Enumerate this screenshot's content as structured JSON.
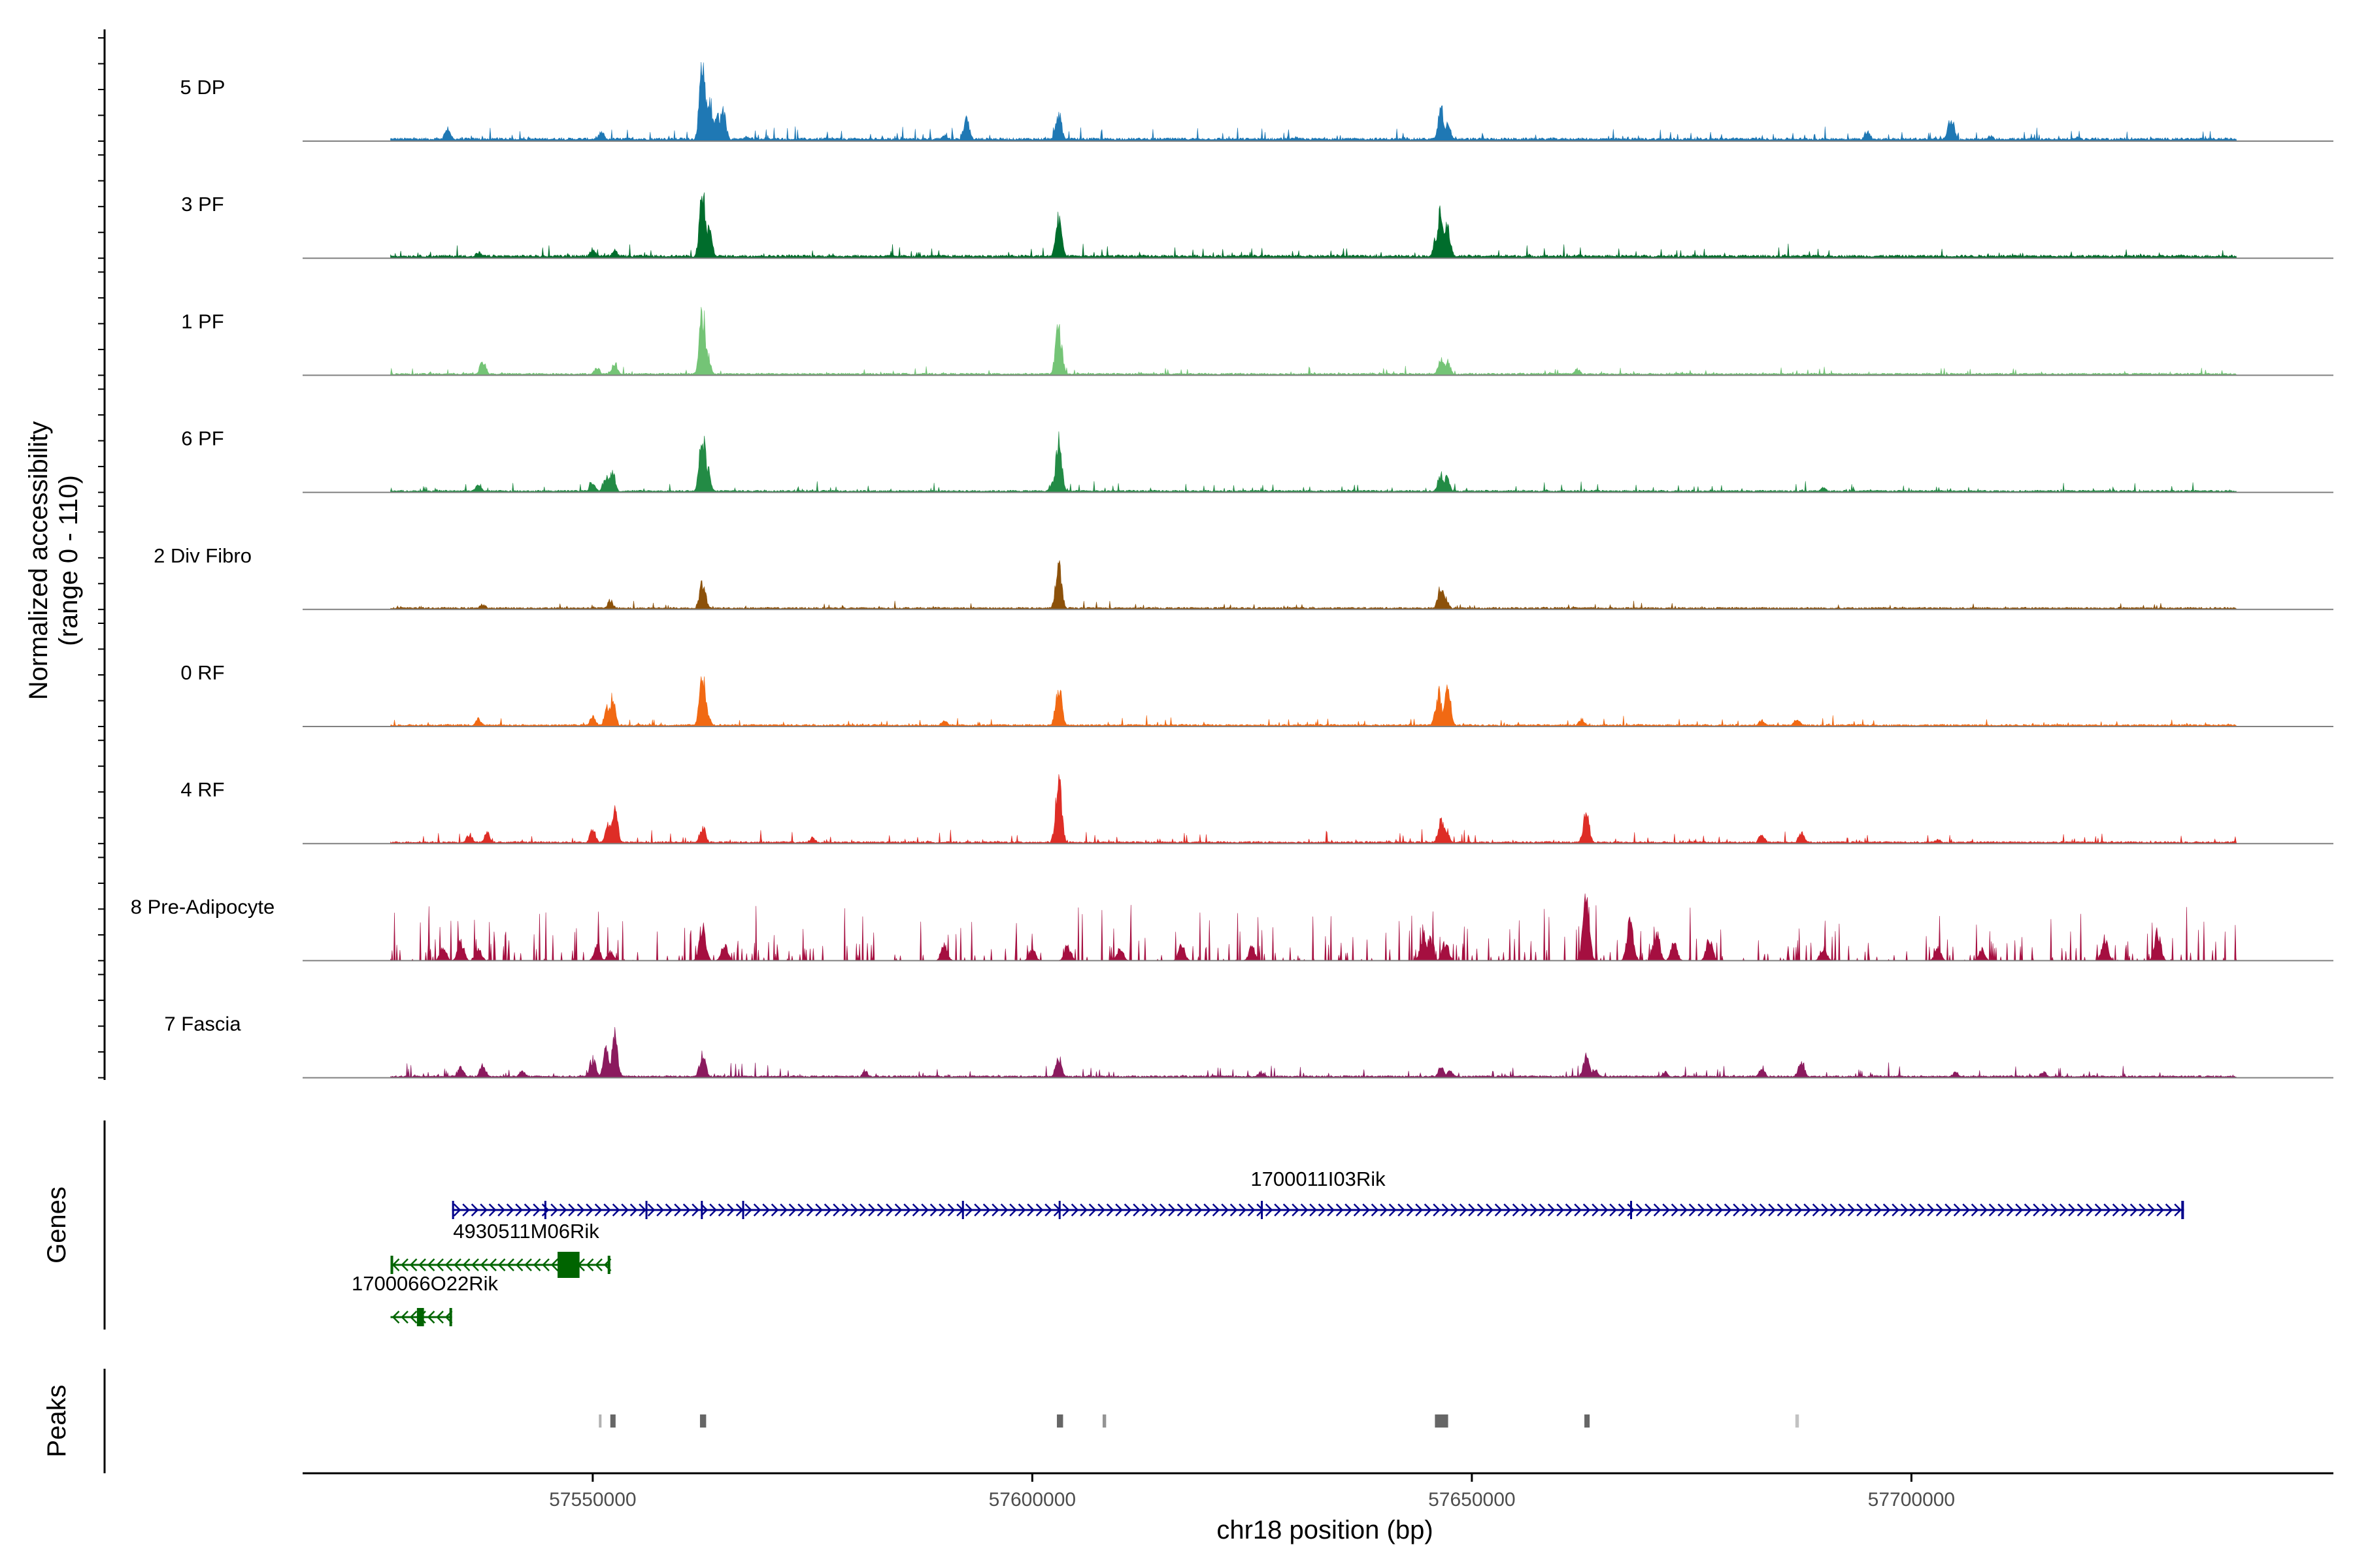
{
  "chart_data": {
    "type": "area",
    "title": "",
    "xlabel": "chr18 position (bp)",
    "ylabel_line1": "Normalized accessibility",
    "ylabel_line2": "(range 0 - 110)",
    "ylim": [
      0,
      110
    ],
    "xlim": [
      57517000,
      57748000
    ],
    "x_ticks": [
      57550000,
      57600000,
      57650000,
      57700000
    ],
    "x_tick_labels": [
      "57550000",
      "57600000",
      "57650000",
      "57700000"
    ],
    "signal_range": [
      57527000,
      57737000
    ],
    "tracks": [
      {
        "name": "5 DP",
        "color": "#1f78b4",
        "baseline": 3,
        "noise": 5,
        "density": 0.07,
        "peaks": [
          [
            57533500,
            18
          ],
          [
            57551000,
            12
          ],
          [
            57562500,
            105
          ],
          [
            57563300,
            55
          ],
          [
            57564200,
            38
          ],
          [
            57564800,
            40
          ],
          [
            57567500,
            6
          ],
          [
            57590000,
            9
          ],
          [
            57592500,
            28
          ],
          [
            57603000,
            35
          ],
          [
            57630000,
            6
          ],
          [
            57646500,
            42
          ],
          [
            57647200,
            25
          ],
          [
            57695000,
            14
          ],
          [
            57704500,
            32
          ],
          [
            57709000,
            7
          ],
          [
            57719000,
            5
          ]
        ]
      },
      {
        "name": "3 PF",
        "color": "#006d2c",
        "baseline": 3,
        "noise": 5,
        "density": 0.06,
        "peaks": [
          [
            57537000,
            8
          ],
          [
            57550000,
            12
          ],
          [
            57552500,
            10
          ],
          [
            57562500,
            85
          ],
          [
            57563200,
            40
          ],
          [
            57603000,
            55
          ],
          [
            57646500,
            70
          ],
          [
            57647200,
            45
          ],
          [
            57646000,
            30
          ]
        ]
      },
      {
        "name": "1 PF",
        "color": "#74c476",
        "baseline": 2,
        "noise": 3,
        "density": 0.05,
        "peaks": [
          [
            57537500,
            18
          ],
          [
            57550500,
            10
          ],
          [
            57552500,
            16
          ],
          [
            57562500,
            82
          ],
          [
            57563000,
            30
          ],
          [
            57603000,
            65
          ],
          [
            57646500,
            22
          ],
          [
            57647200,
            18
          ],
          [
            57662000,
            8
          ]
        ]
      },
      {
        "name": "6 PF",
        "color": "#238b45",
        "baseline": 2,
        "noise": 4,
        "density": 0.06,
        "peaks": [
          [
            57537000,
            12
          ],
          [
            57550000,
            14
          ],
          [
            57552200,
            28
          ],
          [
            57551500,
            20
          ],
          [
            57562500,
            78
          ],
          [
            57563000,
            35
          ],
          [
            57603000,
            68
          ],
          [
            57602300,
            12
          ],
          [
            57646500,
            25
          ],
          [
            57647100,
            20
          ],
          [
            57690000,
            6
          ]
        ]
      },
      {
        "name": "2 Div Fibro",
        "color": "#8c510a",
        "baseline": 2,
        "noise": 3,
        "density": 0.04,
        "peaks": [
          [
            57537500,
            7
          ],
          [
            57552000,
            12
          ],
          [
            57562500,
            35
          ],
          [
            57603000,
            55
          ],
          [
            57646500,
            30
          ],
          [
            57647000,
            15
          ]
        ]
      },
      {
        "name": "0 RF",
        "color": "#f16913",
        "baseline": 2,
        "noise": 4,
        "density": 0.05,
        "peaks": [
          [
            57537000,
            10
          ],
          [
            57550000,
            14
          ],
          [
            57552200,
            38
          ],
          [
            57551700,
            25
          ],
          [
            57562500,
            62
          ],
          [
            57563000,
            20
          ],
          [
            57590000,
            8
          ],
          [
            57603000,
            55
          ],
          [
            57646200,
            45
          ],
          [
            57647200,
            58
          ],
          [
            57662500,
            10
          ],
          [
            57683000,
            8
          ],
          [
            57687000,
            10
          ]
        ]
      },
      {
        "name": "4 RF",
        "color": "#de2d26",
        "baseline": 2,
        "noise": 5,
        "density": 0.06,
        "peaks": [
          [
            57536000,
            12
          ],
          [
            57538000,
            14
          ],
          [
            57550000,
            18
          ],
          [
            57552500,
            45
          ],
          [
            57551800,
            28
          ],
          [
            57562500,
            22
          ],
          [
            57575000,
            8
          ],
          [
            57603000,
            80
          ],
          [
            57646500,
            30
          ],
          [
            57647000,
            22
          ],
          [
            57663000,
            40
          ],
          [
            57683000,
            12
          ],
          [
            57687500,
            15
          ],
          [
            57703000,
            6
          ]
        ]
      },
      {
        "name": "8 Pre-Adipocyte",
        "color": "#a50f40",
        "baseline": 0,
        "noise": 22,
        "density": 0.16,
        "peaks": [
          [
            57533000,
            18
          ],
          [
            57535000,
            25
          ],
          [
            57537000,
            16
          ],
          [
            57550500,
            18
          ],
          [
            57552000,
            12
          ],
          [
            57562500,
            48
          ],
          [
            57565000,
            22
          ],
          [
            57590000,
            20
          ],
          [
            57600000,
            15
          ],
          [
            57604000,
            20
          ],
          [
            57610000,
            18
          ],
          [
            57617000,
            20
          ],
          [
            57625000,
            18
          ],
          [
            57644500,
            35
          ],
          [
            57645200,
            28
          ],
          [
            57647000,
            25
          ],
          [
            57663000,
            95
          ],
          [
            57668000,
            50
          ],
          [
            57671000,
            40
          ],
          [
            57673000,
            25
          ],
          [
            57677000,
            28
          ],
          [
            57690000,
            18
          ],
          [
            57703000,
            16
          ],
          [
            57708000,
            15
          ],
          [
            57722000,
            30
          ],
          [
            57728000,
            40
          ]
        ]
      },
      {
        "name": "7 Fascia",
        "color": "#8b1a5e",
        "baseline": 2,
        "noise": 6,
        "density": 0.07,
        "peaks": [
          [
            57535000,
            14
          ],
          [
            57537500,
            16
          ],
          [
            57542000,
            10
          ],
          [
            57550000,
            25
          ],
          [
            57551500,
            35
          ],
          [
            57552500,
            55
          ],
          [
            57562500,
            30
          ],
          [
            57581000,
            8
          ],
          [
            57603000,
            28
          ],
          [
            57626000,
            8
          ],
          [
            57646500,
            14
          ],
          [
            57647500,
            10
          ],
          [
            57663000,
            30
          ],
          [
            57664000,
            12
          ],
          [
            57672000,
            8
          ],
          [
            57683000,
            14
          ],
          [
            57687500,
            22
          ],
          [
            57705000,
            8
          ],
          [
            57715000,
            8
          ]
        ]
      }
    ],
    "genes": [
      {
        "name": "1700011I03Rik",
        "color": "#00008b",
        "strand": "+",
        "start": 57534000,
        "end": 57731000,
        "exons": [
          [
            57534000,
            57534200
          ],
          [
            57544500,
            57544700
          ],
          [
            57556000,
            57556200
          ],
          [
            57562300,
            57562500
          ],
          [
            57567000,
            57567200
          ],
          [
            57592000,
            57592200
          ],
          [
            57603000,
            57603200
          ],
          [
            57626000,
            57626200
          ],
          [
            57668000,
            57668200
          ],
          [
            57730700,
            57731000
          ]
        ]
      },
      {
        "name": "4930511M06Rik",
        "color": "#006400",
        "strand": "-",
        "start": 57527000,
        "end": 57552000,
        "exons": [
          [
            57546000,
            57548500
          ],
          [
            57527000,
            57527300
          ],
          [
            57551700,
            57552000
          ]
        ]
      },
      {
        "name": "1700066O22Rik",
        "color": "#006400",
        "strand": "-",
        "start": 57527000,
        "end": 57534000,
        "exons": [
          [
            57530000,
            57530800
          ],
          [
            57533700,
            57534000
          ]
        ]
      }
    ],
    "peaks": [
      {
        "start": 57550700,
        "end": 57551000,
        "alpha": 0.5
      },
      {
        "start": 57552000,
        "end": 57552600,
        "alpha": 1.0
      },
      {
        "start": 57562200,
        "end": 57562900,
        "alpha": 1.0
      },
      {
        "start": 57602800,
        "end": 57603500,
        "alpha": 1.0
      },
      {
        "start": 57608000,
        "end": 57608400,
        "alpha": 0.7
      },
      {
        "start": 57645800,
        "end": 57647300,
        "alpha": 1.0
      },
      {
        "start": 57662800,
        "end": 57663400,
        "alpha": 1.0
      },
      {
        "start": 57686800,
        "end": 57687200,
        "alpha": 0.4
      }
    ],
    "panel_titles": {
      "genes": "Genes",
      "peaks": "Peaks"
    }
  }
}
